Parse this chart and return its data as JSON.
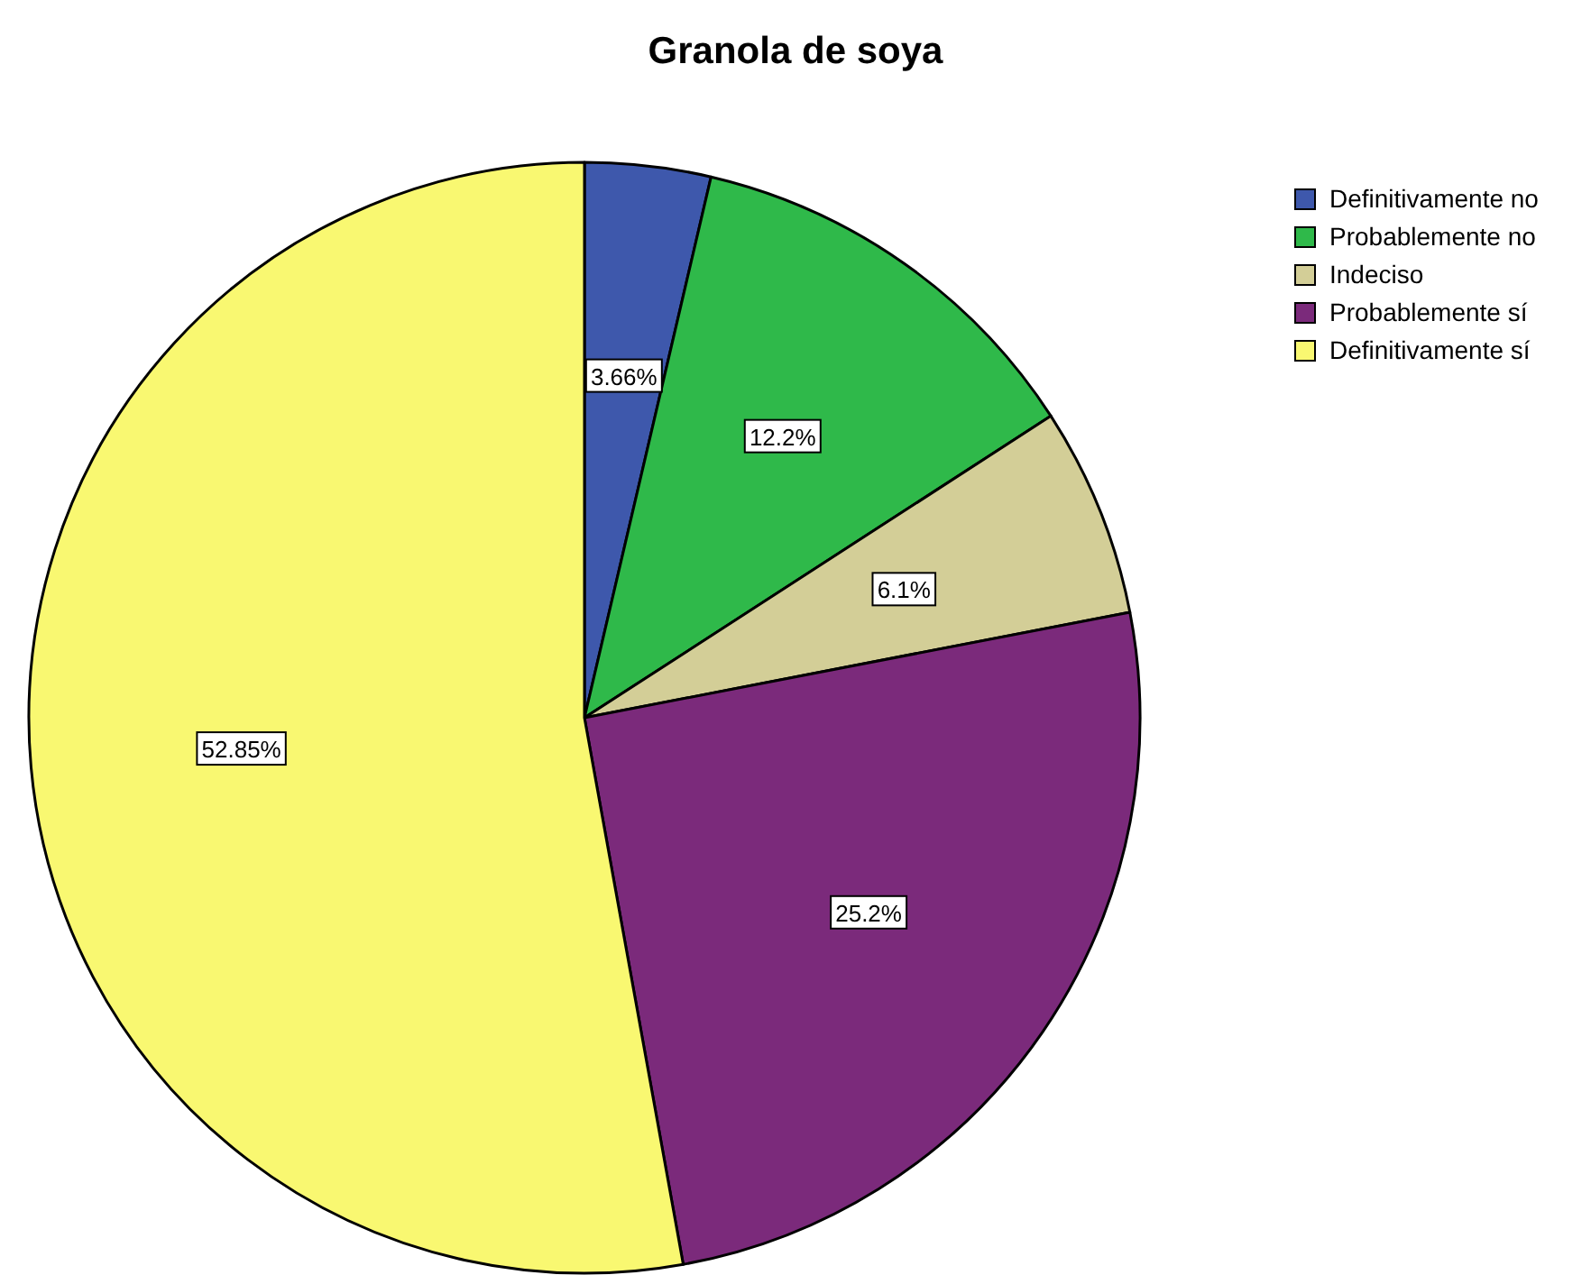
{
  "chart_data": {
    "type": "pie",
    "title": "Granola de soya",
    "categories": [
      "Definitivamente no",
      "Probablemente no",
      "Indeciso",
      "Probablemente sí",
      "Definitivamente sí"
    ],
    "values": [
      3.66,
      12.2,
      6.1,
      25.2,
      52.85
    ],
    "colors": [
      "#3e58ac",
      "#2fb94a",
      "#d3ce97",
      "#7b2a7b",
      "#f9f871"
    ],
    "value_labels": [
      "3.66%",
      "12.2%",
      "6.1%",
      "25.2%",
      "52.85%"
    ],
    "legend": "top right"
  }
}
